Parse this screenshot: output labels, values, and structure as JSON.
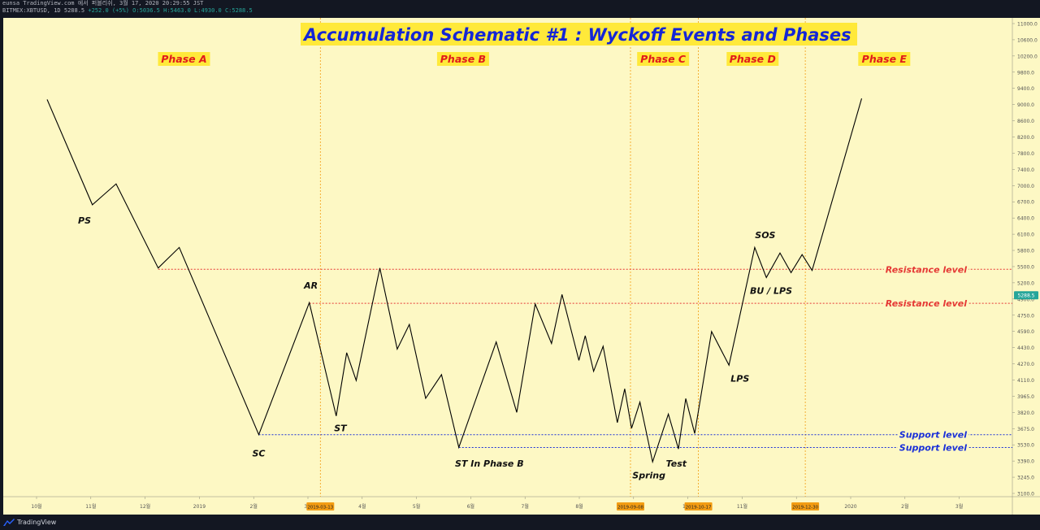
{
  "header": {
    "line1": "eunsa TradingView.com 에서 퍼블리쉬, 3월 17, 2020 20:29:55 JST",
    "symbol": "BITMEX:XBTUSD, 1D 5288.5",
    "change": "+252.0 (+5%)",
    "ohlc": "O:5036.5 H:5463.0 L:4930.0 C:5288.5"
  },
  "colors": {
    "background": "#fdf8c4",
    "price_line": "#000000",
    "resistance": "#e53935",
    "support": "#1a30d8",
    "phase_divider": "#f39c12",
    "title_text": "#1426d6",
    "title_bg": "#ffe93a",
    "phase_text": "#e01b1b",
    "phase_bg": "#ffe93a",
    "price_badge": "#26a69a",
    "date_badge": "#f39c12"
  },
  "chart_data": {
    "type": "line",
    "title": "Accumulation Schematic #1 : Wyckoff Events and Phases",
    "x_axis": {
      "ticks": [
        "10월",
        "11월",
        "12월",
        "2019",
        "2월",
        "3월",
        "4월",
        "5월",
        "6월",
        "7월",
        "8월",
        "9월",
        "10월",
        "11월",
        "12월",
        "2020",
        "2월",
        "3월",
        "4월"
      ],
      "highlighted_dates": [
        "2019-03-13",
        "2019-09-08",
        "2019-10-17",
        "2019-12-30"
      ]
    },
    "y_axis": {
      "scale": "log",
      "ticks": [
        "11000.0",
        "10600.0",
        "10200.0",
        "9800.0",
        "9400.0",
        "9000.0",
        "8600.0",
        "8200.0",
        "7800.0",
        "7400.0",
        "7000.0",
        "6700.0",
        "6400.0",
        "6100.0",
        "5800.0",
        "5500.0",
        "5200.0",
        "4900.0",
        "4750.0",
        "4590.0",
        "4430.0",
        "4270.0",
        "4110.0",
        "3965.0",
        "3820.0",
        "3675.0",
        "3530.0",
        "3390.0",
        "3245.0",
        "3100.0"
      ],
      "last_price": "5288.5"
    },
    "series": [
      {
        "values": [
          [
            0.0,
            8965
          ],
          [
            8.6,
            6749
          ],
          [
            13.1,
            7141
          ],
          [
            21.1,
            5692
          ],
          [
            25.1,
            6016
          ],
          [
            40.2,
            3632
          ],
          [
            49.8,
            5185
          ],
          [
            54.9,
            3819
          ],
          [
            56.9,
            4530
          ],
          [
            58.7,
            4204
          ],
          [
            63.2,
            5692
          ],
          [
            66.5,
            4574
          ],
          [
            68.8,
            4889
          ],
          [
            71.9,
            4006
          ],
          [
            74.9,
            4270
          ],
          [
            78.2,
            3509
          ],
          [
            85.3,
            4663
          ],
          [
            89.2,
            3857
          ],
          [
            92.7,
            5165
          ],
          [
            95.8,
            4644
          ],
          [
            97.8,
            5301
          ],
          [
            101.0,
            4437
          ],
          [
            102.2,
            4742
          ],
          [
            103.8,
            4308
          ],
          [
            105.6,
            4609
          ],
          [
            108.3,
            3752
          ],
          [
            109.7,
            4110
          ],
          [
            111.0,
            3695
          ],
          [
            112.6,
            3965
          ],
          [
            115.0,
            3375
          ],
          [
            118.0,
            3839
          ],
          [
            119.9,
            3495
          ],
          [
            121.3,
            4003
          ],
          [
            123.0,
            3643
          ],
          [
            126.2,
            4795
          ],
          [
            129.5,
            4380
          ],
          [
            134.4,
            6016
          ],
          [
            136.6,
            5548
          ],
          [
            139.2,
            5927
          ],
          [
            141.3,
            5621
          ],
          [
            143.4,
            5901
          ],
          [
            145.3,
            5654
          ],
          [
            154.7,
            8990
          ]
        ]
      }
    ],
    "horizontal_levels": [
      {
        "label": "Resistance level",
        "value": 5672,
        "from_x": 21.1
      },
      {
        "label": "Resistance level",
        "value": 5175,
        "from_x": 49.8
      },
      {
        "label": "Support level",
        "value": 3632,
        "from_x": 40.2
      },
      {
        "label": "Support level",
        "value": 3509,
        "from_x": 78.2
      }
    ],
    "phase_dividers": [
      51.9,
      110.8,
      123.7,
      144.0
    ],
    "phases": [
      {
        "label": "Phase A",
        "x": 26
      },
      {
        "label": "Phase B",
        "x": 79
      },
      {
        "label": "Phase C",
        "x": 117
      },
      {
        "label": "Phase D",
        "x": 134
      },
      {
        "label": "Phase E",
        "x": 159
      }
    ],
    "annotations": [
      {
        "text": "PS",
        "x": 7.1,
        "y": 6470
      },
      {
        "text": "SC",
        "x": 40.2,
        "y": 3455
      },
      {
        "text": "AR",
        "x": 50.1,
        "y": 5435
      },
      {
        "text": "ST",
        "x": 55.7,
        "y": 3700
      },
      {
        "text": "ST In Phase B",
        "x": 84.0,
        "y": 3360
      },
      {
        "text": "Spring",
        "x": 114.3,
        "y": 3255
      },
      {
        "text": "Test",
        "x": 119.5,
        "y": 3360
      },
      {
        "text": "LPS",
        "x": 131.6,
        "y": 4225
      },
      {
        "text": "SOS",
        "x": 136.4,
        "y": 6225
      },
      {
        "text": "BU / LPS",
        "x": 137.5,
        "y": 5355
      }
    ]
  },
  "footer": {
    "brand": "TradingView"
  }
}
